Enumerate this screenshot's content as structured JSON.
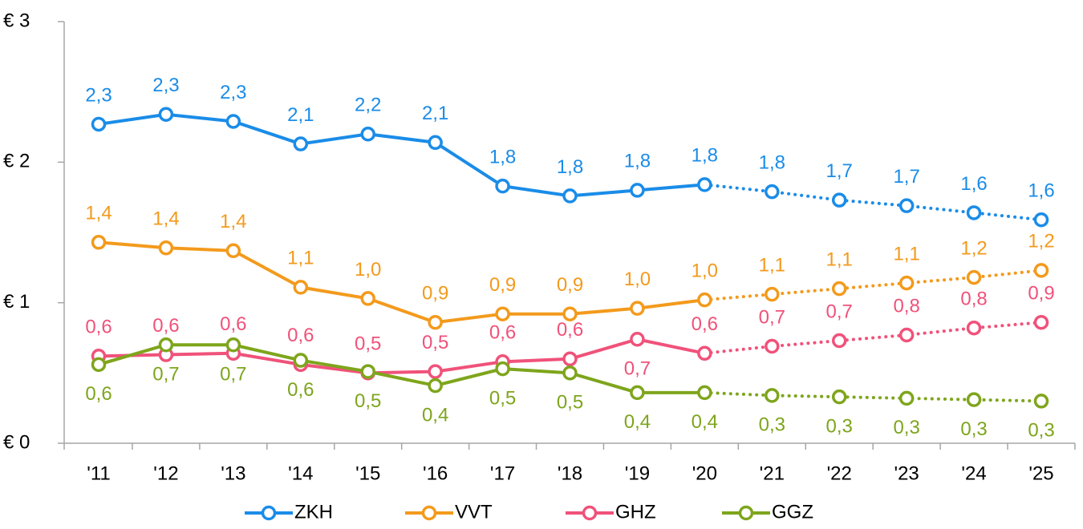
{
  "chart_data": {
    "type": "line",
    "categories": [
      "'11",
      "'12",
      "'13",
      "'14",
      "'15",
      "'16",
      "'17",
      "'18",
      "'19",
      "'20",
      "'21",
      "'22",
      "'23",
      "'24",
      "'25"
    ],
    "solid_until": "'20",
    "ylim": [
      0,
      3
    ],
    "yticks": [
      {
        "value": 0,
        "label": "€ 0"
      },
      {
        "value": 1,
        "label": "€ 1"
      },
      {
        "value": 2,
        "label": "€ 2"
      },
      {
        "value": 3,
        "label": "€ 3"
      }
    ],
    "grid": false,
    "legend": "bottom",
    "series": [
      {
        "name": "ZKH",
        "color": "#1a8ce8",
        "values": [
          2.27,
          2.34,
          2.29,
          2.13,
          2.2,
          2.14,
          1.83,
          1.76,
          1.8,
          1.84,
          1.79,
          1.73,
          1.69,
          1.64,
          1.59
        ],
        "value_labels": [
          "2,3",
          "2,3",
          "2,3",
          "2,1",
          "2,2",
          "2,1",
          "1,8",
          "1,8",
          "1,8",
          "1,8",
          "1,8",
          "1,7",
          "1,7",
          "1,6",
          "1,6"
        ]
      },
      {
        "name": "VVT",
        "color": "#f39a1c",
        "values": [
          1.43,
          1.39,
          1.37,
          1.11,
          1.03,
          0.86,
          0.92,
          0.92,
          0.96,
          1.02,
          1.06,
          1.1,
          1.14,
          1.18,
          1.23
        ],
        "value_labels": [
          "1,4",
          "1,4",
          "1,4",
          "1,1",
          "1,0",
          "0,9",
          "0,9",
          "0,9",
          "1,0",
          "1,0",
          "1,1",
          "1,1",
          "1,1",
          "1,2",
          "1,2"
        ]
      },
      {
        "name": "GHZ",
        "color": "#f0527a",
        "values": [
          0.62,
          0.63,
          0.64,
          0.56,
          0.5,
          0.51,
          0.58,
          0.6,
          0.74,
          0.64,
          0.69,
          0.73,
          0.77,
          0.82,
          0.86
        ],
        "value_labels": [
          "0,6",
          "0,6",
          "0,6",
          "0,6",
          "0,5",
          "0,5",
          "0,6",
          "0,6",
          "0,7",
          "0,6",
          "0,7",
          "0,7",
          "0,8",
          "0,8",
          "0,9"
        ]
      },
      {
        "name": "GGZ",
        "color": "#7ea51c",
        "values": [
          0.56,
          0.7,
          0.7,
          0.59,
          0.51,
          0.41,
          0.53,
          0.5,
          0.36,
          0.36,
          0.34,
          0.33,
          0.32,
          0.31,
          0.3
        ],
        "value_labels": [
          "0,6",
          "0,7",
          "0,7",
          "0,6",
          "0,5",
          "0,4",
          "0,5",
          "0,5",
          "0,4",
          "0,4",
          "0,3",
          "0,3",
          "0,3",
          "0,3",
          "0,3"
        ]
      }
    ]
  }
}
